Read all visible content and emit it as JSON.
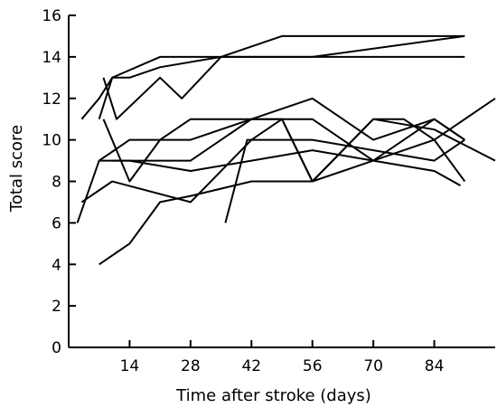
{
  "chart_data": {
    "type": "line",
    "title": "",
    "xlabel": "Time after stroke (days)",
    "ylabel": "Total score",
    "xlim": [
      0,
      98
    ],
    "ylim": [
      0,
      16
    ],
    "xticks": [
      14,
      28,
      42,
      56,
      70,
      84
    ],
    "yticks": [
      0,
      2,
      4,
      6,
      8,
      10,
      12,
      14,
      16
    ],
    "grid": false,
    "series": [
      {
        "x": [
          3,
          7,
          10,
          21,
          28,
          91
        ],
        "y": [
          11,
          12,
          13,
          14,
          14,
          14
        ]
      },
      {
        "x": [
          7,
          10,
          14,
          21,
          35,
          49,
          91
        ],
        "y": [
          11,
          13,
          13,
          13.5,
          14,
          15,
          15
        ]
      },
      {
        "x": [
          8,
          11,
          21,
          26,
          35,
          56,
          91
        ],
        "y": [
          13,
          11,
          13,
          12,
          14,
          14,
          15
        ]
      },
      {
        "x": [
          8,
          14,
          21,
          28,
          42,
          56,
          70,
          84,
          91
        ],
        "y": [
          11,
          8,
          10,
          11,
          11,
          11,
          9,
          11,
          10
        ]
      },
      {
        "x": [
          2,
          7,
          14,
          28,
          42,
          49,
          56,
          70,
          77,
          84,
          98
        ],
        "y": [
          6,
          9,
          10,
          10,
          11,
          11,
          8,
          11,
          11,
          10,
          12
        ]
      },
      {
        "x": [
          7,
          21,
          28,
          42,
          56,
          70,
          84,
          91
        ],
        "y": [
          9,
          9,
          9,
          11,
          12,
          10,
          11,
          10
        ]
      },
      {
        "x": [
          3,
          10,
          28,
          42,
          49,
          56,
          70,
          84,
          98
        ],
        "y": [
          7,
          8,
          7,
          10,
          11,
          8,
          11,
          10.5,
          9
        ]
      },
      {
        "x": [
          7,
          14,
          21,
          28,
          42,
          56,
          70,
          84,
          91
        ],
        "y": [
          4,
          5,
          7,
          7.3,
          8,
          8,
          9,
          10,
          8
        ]
      },
      {
        "x": [
          36,
          41,
          56,
          84,
          91
        ],
        "y": [
          6,
          10,
          10,
          9,
          10
        ]
      },
      {
        "x": [
          10,
          14,
          28,
          42,
          56,
          70,
          84,
          90
        ],
        "y": [
          9,
          9,
          8.5,
          9,
          9.5,
          9,
          8.5,
          7.8
        ]
      }
    ]
  }
}
